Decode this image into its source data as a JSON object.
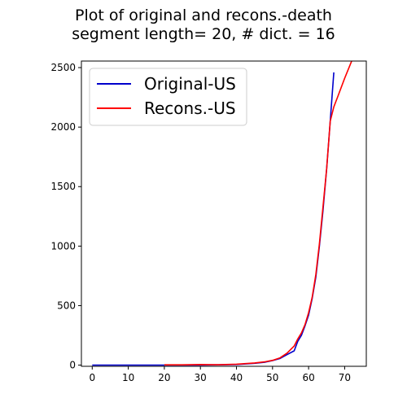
{
  "chart_data": {
    "type": "line",
    "title_line1": "Plot of original and recons.-death",
    "title_line2": "segment length= 20, # dict. = 16",
    "xlabel": "",
    "ylabel": "",
    "xlim": [
      -3,
      76
    ],
    "ylim": [
      -10,
      2555
    ],
    "xticks": [
      0,
      10,
      20,
      30,
      40,
      50,
      60,
      70
    ],
    "yticks": [
      0,
      500,
      1000,
      1500,
      2000,
      2500
    ],
    "legend_position": "upper-left",
    "grid": false,
    "series": [
      {
        "name": "Original-US",
        "color": "#0000cc",
        "x": [
          0,
          5,
          10,
          15,
          20,
          25,
          30,
          35,
          40,
          45,
          48,
          50,
          52,
          54,
          56,
          57,
          58,
          59,
          60,
          61,
          62,
          63,
          64,
          65,
          66,
          67
        ],
        "y": [
          0,
          0,
          0,
          0,
          0,
          0,
          1,
          2,
          5,
          15,
          25,
          38,
          55,
          88,
          120,
          200,
          250,
          330,
          420,
          560,
          740,
          1000,
          1300,
          1650,
          2050,
          2460
        ]
      },
      {
        "name": "Recons.-US",
        "color": "#ff0000",
        "x": [
          20,
          25,
          30,
          35,
          40,
          45,
          48,
          50,
          52,
          54,
          56,
          57,
          58,
          59,
          60,
          61,
          62,
          63,
          64,
          65,
          66,
          67,
          68,
          70,
          72
        ],
        "y": [
          2,
          2,
          5,
          3,
          8,
          18,
          28,
          40,
          60,
          100,
          160,
          220,
          270,
          340,
          440,
          570,
          760,
          1020,
          1330,
          1650,
          2050,
          2170,
          2250,
          2410,
          2560
        ]
      }
    ]
  }
}
